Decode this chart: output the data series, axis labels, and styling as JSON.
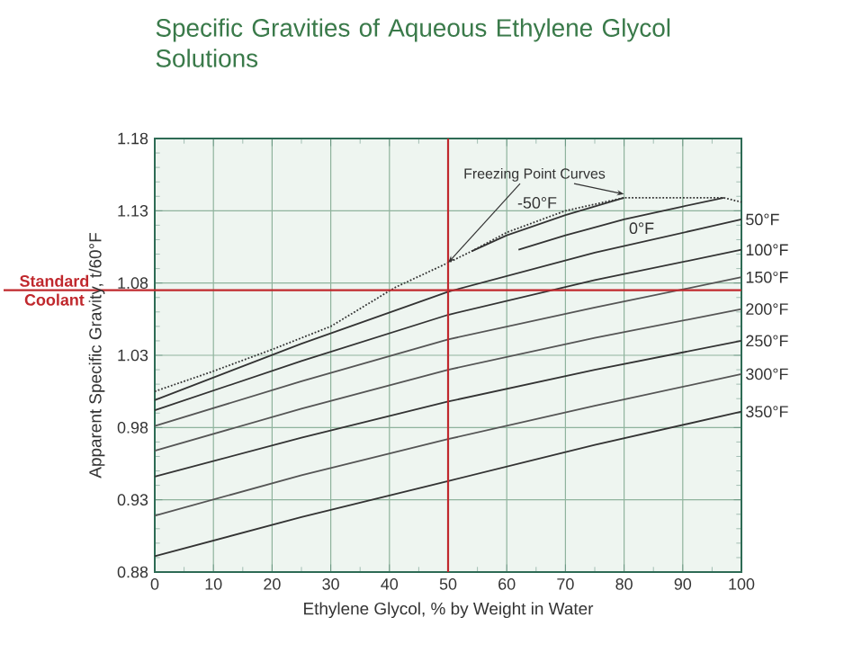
{
  "chart_data": {
    "type": "line",
    "title": "Specific Gravities of Aqueous Ethylene Glycol Solutions",
    "xlabel": "Ethylene Glycol, % by Weight in Water",
    "ylabel": "Apparent Specific Gravity, t/60°F",
    "xlim": [
      0,
      100
    ],
    "xticks": [
      0,
      10,
      20,
      30,
      40,
      50,
      60,
      70,
      80,
      90,
      100
    ],
    "ylim": [
      0.88,
      1.18
    ],
    "yticks": [
      0.88,
      0.93,
      0.98,
      1.03,
      1.08,
      1.13,
      1.18
    ],
    "grid": true,
    "marker": "none",
    "line_style": "solid",
    "series": [
      {
        "name": "50°F",
        "color": "#333333",
        "x": [
          0,
          25,
          50,
          75,
          100
        ],
        "values": [
          0.999,
          1.038,
          1.074,
          1.101,
          1.124
        ]
      },
      {
        "name": "100°F",
        "color": "#333333",
        "x": [
          0,
          25,
          50,
          75,
          100
        ],
        "values": [
          0.992,
          1.026,
          1.058,
          1.082,
          1.103
        ]
      },
      {
        "name": "150°F",
        "color": "#555555",
        "x": [
          0,
          25,
          50,
          75,
          100
        ],
        "values": [
          0.981,
          1.012,
          1.041,
          1.063,
          1.084
        ]
      },
      {
        "name": "200°F",
        "color": "#555555",
        "x": [
          0,
          25,
          50,
          75,
          100
        ],
        "values": [
          0.964,
          0.993,
          1.02,
          1.042,
          1.062
        ]
      },
      {
        "name": "250°F",
        "color": "#333333",
        "x": [
          0,
          25,
          50,
          75,
          100
        ],
        "values": [
          0.946,
          0.973,
          0.998,
          1.02,
          1.04
        ]
      },
      {
        "name": "300°F",
        "color": "#555555",
        "x": [
          0,
          25,
          50,
          75,
          100
        ],
        "values": [
          0.919,
          0.947,
          0.972,
          0.995,
          1.017
        ]
      },
      {
        "name": "350°F",
        "color": "#333333",
        "x": [
          0,
          25,
          50,
          75,
          100
        ],
        "values": [
          0.891,
          0.918,
          0.943,
          0.968,
          0.991
        ]
      },
      {
        "name": "-50°F",
        "color": "#333333",
        "x": [
          54,
          60,
          70,
          80
        ],
        "values": [
          1.102,
          1.113,
          1.127,
          1.139
        ]
      },
      {
        "name": "0°F",
        "color": "#333333",
        "x": [
          62,
          70,
          80,
          90,
          97
        ],
        "values": [
          1.103,
          1.113,
          1.124,
          1.133,
          1.139
        ]
      },
      {
        "color": "#333333",
        "line_style": "dotted",
        "x": [
          0,
          10,
          20,
          30,
          41,
          50,
          54,
          60,
          70,
          80,
          90,
          97,
          100
        ],
        "values": [
          1.005,
          1.019,
          1.034,
          1.05,
          1.077,
          1.094,
          1.102,
          1.115,
          1.13,
          1.139,
          1.139,
          1.139,
          1.136
        ]
      }
    ],
    "ref_lines": [
      {
        "axis": "y",
        "value": 1.075,
        "label": "Standard Coolant",
        "color": "#c0282d"
      },
      {
        "axis": "x",
        "value": 50,
        "color": "#c0282d"
      }
    ],
    "annotations": [
      {
        "text": "Freezing Point Curves",
        "x": 50,
        "y": 1.094
      }
    ]
  }
}
